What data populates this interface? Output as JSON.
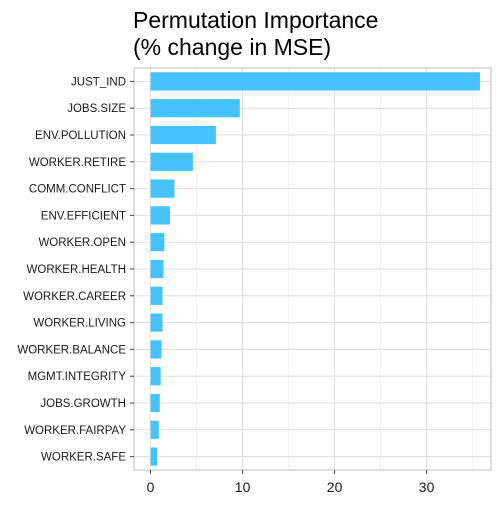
{
  "chart_data": {
    "type": "bar",
    "orientation": "horizontal",
    "title_lines": [
      "Permutation Importance",
      "(% change in MSE)"
    ],
    "xlabel": "",
    "ylabel": "",
    "xlim": [
      -1.8,
      37.0
    ],
    "x_ticks": [
      0,
      10,
      20,
      30
    ],
    "x_tick_labels": [
      "0",
      "10",
      "20",
      "30"
    ],
    "grid": true,
    "legend": "none",
    "bar_color": "#45C3FA",
    "categories": [
      "JUST_IND",
      "JOBS.SIZE",
      "ENV.POLLUTION",
      "WORKER.RETIRE",
      "COMM.CONFLICT",
      "ENV.EFFICIENT",
      "WORKER.OPEN",
      "WORKER.HEALTH",
      "WORKER.CAREER",
      "WORKER.LIVING",
      "WORKER.BALANCE",
      "MGMT.INTEGRITY",
      "JOBS.GROWTH",
      "WORKER.FAIRPAY",
      "WORKER.SAFE"
    ],
    "values": [
      35.8,
      9.7,
      7.1,
      4.6,
      2.6,
      2.1,
      1.5,
      1.4,
      1.3,
      1.3,
      1.2,
      1.1,
      1.0,
      0.9,
      0.7
    ]
  }
}
